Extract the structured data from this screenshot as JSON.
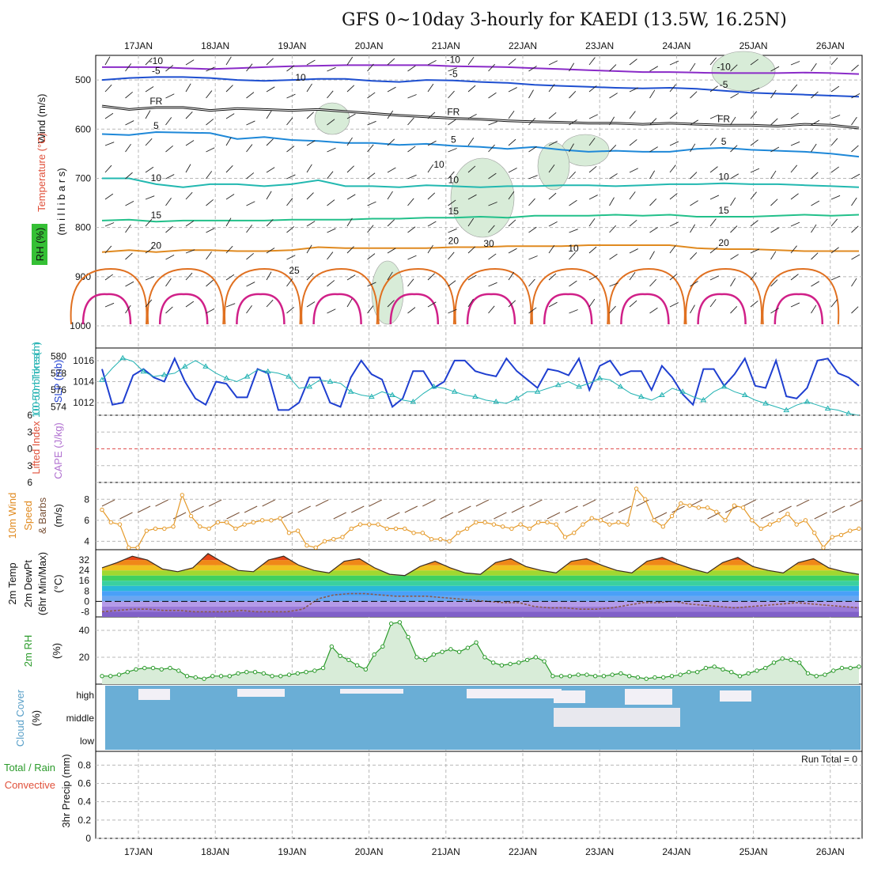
{
  "title": "GFS 0~10day 3-hourly for KAEDI (13.5W, 16.25N)",
  "dates": [
    "17JAN",
    "18JAN",
    "19JAN",
    "20JAN",
    "21JAN",
    "22JAN",
    "23JAN",
    "24JAN",
    "25JAN",
    "26JAN"
  ],
  "run_total_label": "Run Total = 0",
  "colors": {
    "grid": "#b8b8b8",
    "slp": "#1f3fd0",
    "thickness": "#22b2b2",
    "wind10m": "#e59a2a",
    "barb": "#7a5238",
    "rh_fill": "#d8ecd8",
    "rh_line": "#2a9a2a",
    "cloud": "#6aaed6",
    "zero_line": "#e05050",
    "temp_line": "#3a2c22",
    "dew_line": "#8a5a4a"
  },
  "chart_data": [
    {
      "type": "contour",
      "panel": "upper-air",
      "ylabel": [
        "Wind (m/s)",
        "Temperature (°C)",
        "RH (%)",
        "(m i l l i b a r s)"
      ],
      "yticks": [
        500,
        600,
        700,
        800,
        900,
        1000
      ],
      "ylim": [
        450,
        1045
      ],
      "isotherms": [
        {
          "label": "-10",
          "color": "#8a2bc8",
          "levels": [
            474,
            474,
            474,
            476,
            478,
            476,
            474,
            472,
            471,
            470,
            470,
            470,
            470,
            472,
            473,
            474,
            476,
            478,
            480,
            482,
            484,
            484,
            485,
            486,
            486,
            486,
            485,
            486,
            488
          ]
        },
        {
          "label": "-5",
          "color": "#1e4fd0",
          "levels": [
            500,
            496,
            494,
            494,
            496,
            500,
            502,
            500,
            498,
            498,
            502,
            504,
            500,
            501,
            504,
            506,
            510,
            512,
            514,
            516,
            517,
            516,
            518,
            522,
            526,
            528,
            530,
            532,
            534
          ]
        },
        {
          "label": "FR",
          "color": "#111111",
          "levels": [
            553,
            560,
            556,
            556,
            562,
            558,
            560,
            562,
            560,
            564,
            568,
            572,
            575,
            578,
            580,
            583,
            585,
            586,
            588,
            588,
            590,
            588,
            590,
            592,
            592,
            594,
            590,
            592,
            598
          ]
        },
        {
          "label": "5",
          "color": "#1e88d8",
          "levels": [
            610,
            612,
            606,
            607,
            608,
            620,
            616,
            622,
            624,
            628,
            628,
            632,
            630,
            634,
            636,
            640,
            636,
            642,
            646,
            644,
            646,
            646,
            640,
            638,
            642,
            644,
            646,
            650,
            656
          ]
        },
        {
          "label": "10",
          "color": "#22b8b0",
          "levels": [
            700,
            700,
            712,
            718,
            712,
            712,
            716,
            712,
            704,
            716,
            716,
            718,
            714,
            716,
            718,
            716,
            716,
            714,
            714,
            716,
            714,
            712,
            712,
            710,
            712,
            712,
            714,
            716,
            718
          ]
        },
        {
          "label": "15",
          "color": "#22c08a",
          "levels": [
            786,
            784,
            788,
            786,
            786,
            786,
            786,
            784,
            784,
            784,
            782,
            782,
            780,
            780,
            778,
            780,
            776,
            776,
            776,
            774,
            776,
            774,
            778,
            778,
            778,
            776,
            774,
            776,
            774
          ]
        },
        {
          "label": "20",
          "color": "#e08a20",
          "levels": [
            850,
            846,
            850,
            846,
            846,
            848,
            848,
            846,
            840,
            842,
            842,
            842,
            842,
            840,
            840,
            838,
            838,
            838,
            836,
            836,
            836,
            836,
            842,
            844,
            844,
            846,
            848,
            848,
            848
          ]
        }
      ],
      "contour_labels": [
        "10",
        "10",
        "30",
        "10",
        "25"
      ]
    },
    {
      "type": "line",
      "panel": "slp-thickness",
      "ylabel_left": "1000~500mb Thickness (dm)",
      "ylabel_right": "SLP (mb)",
      "left_ticks": [
        574,
        576,
        578,
        580
      ],
      "right_ticks": [
        1012,
        1014,
        1016
      ],
      "left_lim": [
        573,
        581
      ],
      "right_lim": [
        1010.8,
        1017.2
      ],
      "series": [
        {
          "name": "SLP",
          "axis": "right",
          "values": [
            1015.2,
            1011.8,
            1012.0,
            1014.6,
            1015.2,
            1014.4,
            1014.0,
            1016.2,
            1014.0,
            1012.4,
            1011.8,
            1014.0,
            1013.8,
            1012.5,
            1012.5,
            1015.2,
            1014.8,
            1011.3,
            1011.3,
            1012.0,
            1014.4,
            1014.4,
            1012.0,
            1011.6,
            1014.4,
            1016.0,
            1014.7,
            1014.2,
            1011.6,
            1012.4,
            1015.0,
            1015.0,
            1013.4,
            1014.0,
            1016.0,
            1016.0,
            1015.0,
            1014.7,
            1014.5,
            1016.2,
            1015.0,
            1014.2,
            1013.4,
            1015.2,
            1015.0,
            1014.6,
            1016.2,
            1013.2,
            1015.5,
            1016.0,
            1014.6,
            1015.0,
            1015.0,
            1013.2,
            1015.5,
            1014.4,
            1012.8,
            1011.8,
            1015.2,
            1015.2,
            1013.6,
            1014.7,
            1016.2,
            1013.6,
            1013.4,
            1016.0,
            1012.6,
            1012.4,
            1013.4,
            1016.0,
            1016.2,
            1014.8,
            1014.4,
            1013.6
          ]
        },
        {
          "name": "Thickness",
          "axis": "left",
          "values": [
            577.2,
            578.6,
            579.8,
            579.4,
            578.2,
            577.6,
            577.8,
            578.0,
            578.8,
            579.5,
            578.8,
            578.0,
            577.4,
            577.0,
            577.6,
            578.4,
            578.2,
            578.0,
            577.6,
            576.2,
            576.4,
            577.2,
            577.0,
            576.8,
            575.8,
            575.4,
            575.2,
            575.8,
            575.4,
            574.8,
            574.6,
            575.6,
            576.4,
            576.2,
            575.8,
            575.4,
            575.2,
            574.8,
            574.6,
            574.4,
            575.0,
            575.8,
            575.8,
            576.2,
            576.6,
            577.0,
            576.4,
            576.8,
            577.4,
            577.2,
            576.4,
            575.6,
            575.2,
            574.8,
            575.4,
            576.2,
            575.8,
            575.2,
            574.8,
            575.8,
            576.4,
            575.8,
            575.4,
            574.8,
            574.4,
            574.0,
            573.6,
            574.2,
            574.6,
            574.2,
            573.8,
            573.6,
            573.2,
            573.0
          ]
        }
      ]
    },
    {
      "type": "line",
      "panel": "lifted-index-cape",
      "ylabel_left": "Lifted Index",
      "ylabel_right": "CAPE (J/kg)",
      "yticks": [
        "6",
        "3",
        "0",
        "3",
        "6"
      ],
      "ylim": [
        -6,
        6
      ],
      "zero_line": 0
    },
    {
      "type": "line",
      "panel": "10m-wind",
      "ylabel": [
        "10m Wind",
        "Speed",
        "& Barbs",
        "(m/s)"
      ],
      "yticks": [
        4,
        6,
        8
      ],
      "ylim": [
        3.2,
        9.6
      ],
      "series": [
        {
          "name": "10m Wind Speed",
          "values": [
            7.0,
            5.8,
            5.6,
            3.4,
            3.4,
            5.0,
            5.2,
            5.2,
            5.4,
            8.4,
            6.4,
            5.4,
            5.2,
            5.8,
            5.8,
            5.2,
            5.6,
            5.8,
            6.0,
            6.0,
            6.2,
            4.8,
            5.0,
            3.6,
            3.4,
            4.0,
            4.2,
            4.4,
            5.2,
            5.6,
            5.6,
            5.6,
            5.2,
            5.2,
            5.2,
            4.8,
            4.8,
            4.2,
            4.2,
            4.0,
            4.8,
            5.2,
            5.8,
            5.8,
            5.6,
            5.4,
            5.2,
            5.6,
            5.2,
            5.8,
            5.8,
            5.6,
            4.4,
            4.8,
            5.6,
            6.2,
            6.0,
            5.6,
            5.8,
            5.6,
            9.0,
            8.0,
            6.0,
            5.4,
            6.4,
            7.6,
            7.4,
            7.2,
            7.2,
            6.8,
            6.0,
            7.4,
            7.2,
            6.0,
            5.2,
            5.6,
            6.0,
            6.6,
            5.6,
            6.0,
            4.8,
            3.4,
            4.4,
            4.6,
            5.0,
            5.2
          ]
        }
      ]
    },
    {
      "type": "area",
      "panel": "2m-temp",
      "ylabel": [
        "2m Temp",
        "2m DewPt",
        "(6hr Min/Max)",
        "(°C)"
      ],
      "yticks": [
        -8,
        0,
        8,
        16,
        24,
        32
      ],
      "ylim": [
        -12,
        40
      ],
      "series": [
        {
          "name": "2m Temp",
          "values": [
            26,
            30,
            35,
            32,
            25,
            23,
            26,
            37,
            30,
            24,
            23,
            32,
            35,
            28,
            24,
            22,
            31,
            33,
            26,
            21,
            20,
            27,
            31,
            26,
            22,
            21,
            30,
            33,
            27,
            24,
            22,
            31,
            33,
            28,
            24,
            22,
            31,
            34,
            29,
            25,
            22,
            30,
            34,
            27,
            24,
            22,
            30,
            33,
            26,
            23,
            21
          ]
        },
        {
          "name": "2m DewPt",
          "values": [
            -8,
            -7,
            -6,
            -6,
            -7,
            -7,
            -8,
            -8,
            -8,
            -7,
            -8,
            -8,
            -8,
            -6,
            2,
            5,
            6,
            6,
            5,
            4,
            4,
            4,
            3,
            2,
            1,
            0,
            -1,
            -1,
            -4,
            -5,
            -5,
            -6,
            -6,
            -5,
            -3,
            -1,
            -1,
            0,
            -2,
            -3,
            -4,
            -5,
            -4,
            -3,
            -2,
            -1,
            -2,
            -3,
            -4,
            -5
          ]
        }
      ]
    },
    {
      "type": "area",
      "panel": "2m-rh",
      "ylabel": [
        "2m RH",
        "(%)"
      ],
      "yticks": [
        20,
        40
      ],
      "ylim": [
        0,
        50
      ],
      "series": [
        {
          "name": "2m RH",
          "values": [
            6,
            6,
            7,
            9,
            11,
            12,
            12,
            11,
            12,
            10,
            6,
            5,
            4,
            6,
            6,
            6,
            8,
            9,
            9,
            8,
            6,
            6,
            7,
            8,
            9,
            10,
            12,
            28,
            21,
            18,
            14,
            11,
            22,
            28,
            45,
            46,
            35,
            20,
            18,
            22,
            24,
            26,
            24,
            27,
            31,
            20,
            16,
            14,
            15,
            16,
            18,
            20,
            17,
            6,
            6,
            6,
            7,
            7,
            6,
            6,
            7,
            8,
            6,
            5,
            4,
            5,
            5,
            6,
            7,
            9,
            9,
            12,
            13,
            11,
            9,
            6,
            8,
            10,
            12,
            16,
            19,
            18,
            16,
            8,
            6,
            7,
            10,
            12,
            12,
            13
          ]
        }
      ]
    },
    {
      "type": "heatmap",
      "panel": "cloud-cover",
      "ylabel": [
        "Cloud Cover",
        "(%)"
      ],
      "rows": [
        "high",
        "middle",
        "low"
      ]
    },
    {
      "type": "bar",
      "panel": "precip",
      "ylabel": [
        "Total / Rain",
        "Convective",
        "3hr Precip (mm)"
      ],
      "yticks": [
        0,
        0.2,
        0.4,
        0.6,
        0.8
      ],
      "ylim": [
        0,
        0.95
      ],
      "values": []
    }
  ]
}
